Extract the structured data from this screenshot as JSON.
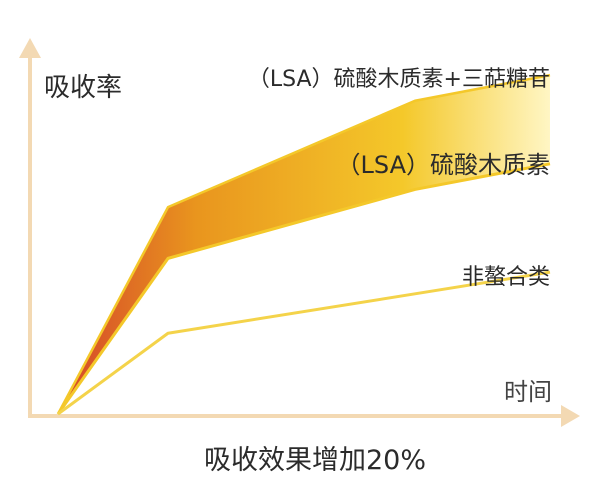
{
  "chart_data": {
    "type": "area",
    "ylabel": "吸收率",
    "xlabel": "时间",
    "caption": "吸收效果增加20%",
    "x": [
      0,
      1,
      2,
      3
    ],
    "series": [
      {
        "name": "（LSA）硫酸木质素+三萜糖苷",
        "values": [
          0,
          0.525,
          0.795,
          0.86
        ]
      },
      {
        "name": "（LSA）硫酸木质素",
        "values": [
          0,
          0.395,
          0.57,
          0.635
        ]
      },
      {
        "name": "非螯合类",
        "values": [
          0,
          0.205,
          0.305,
          0.36
        ]
      }
    ],
    "ylim": [
      0,
      1
    ],
    "xlim": [
      0,
      3
    ],
    "grid": false,
    "legend": "inline-right"
  },
  "colors": {
    "axis": "#f3d9b3",
    "band_start": "#d4442a",
    "band_mid": "#e9951e",
    "band_gold": "#f4c82a",
    "band_end": "#fff6c4",
    "line": "#f4d34a",
    "text": "#2b2b2b",
    "axis_text": "#444444"
  }
}
